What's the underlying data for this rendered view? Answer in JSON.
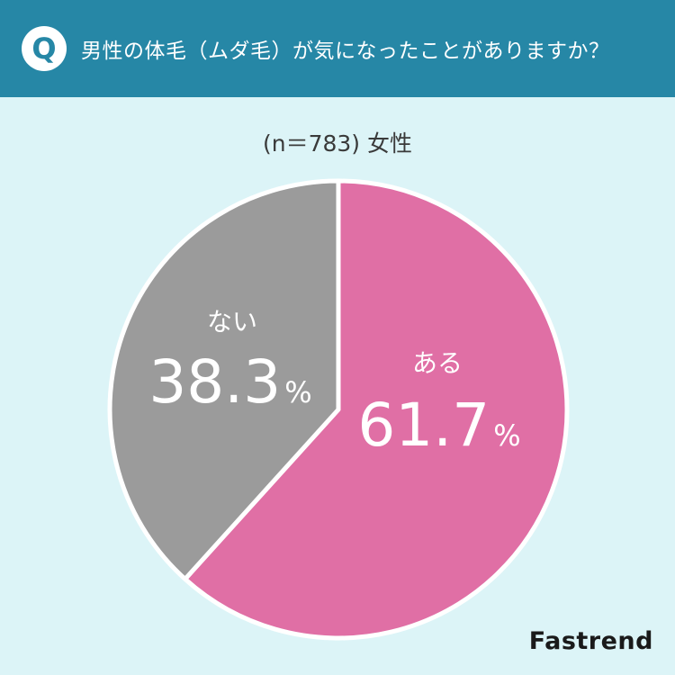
{
  "header": {
    "badge": "Q",
    "question": "男性の体毛（ムダ毛）が気になったことがありますか？"
  },
  "subtitle": "(n＝783) 女性",
  "brand": "Fastrend",
  "chart_data": {
    "type": "pie",
    "slices": [
      {
        "label": "ある",
        "value": 61.7,
        "display": "61.7",
        "color": "#e06fa5"
      },
      {
        "label": "ない",
        "value": 38.3,
        "display": "38.3",
        "color": "#9b9b9b"
      }
    ],
    "unit": "%",
    "start_angle": "12 o'clock",
    "direction": "clockwise"
  }
}
